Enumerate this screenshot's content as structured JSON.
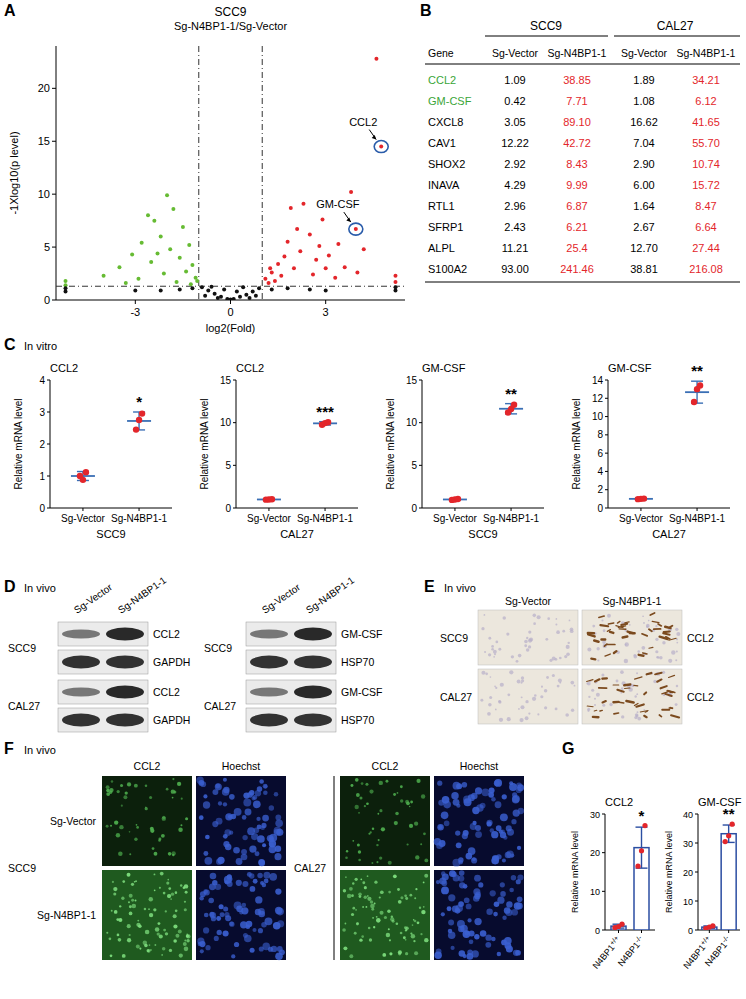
{
  "panels": [
    "A",
    "B",
    "C",
    "D",
    "E",
    "F",
    "G"
  ],
  "chart_data": [
    {
      "type": "scatter",
      "title": "SCC9",
      "subtitle": "Sg-N4BP1-1/Sg-Vector",
      "x_label": "log2(Fold)",
      "y_label": "-1Xlog10(p level)",
      "xlim": [
        -5.5,
        5.5
      ],
      "xticks": [
        -3,
        0,
        3
      ],
      "ylim": [
        0,
        24
      ],
      "yticks": [
        0,
        5,
        10,
        15,
        20
      ],
      "thresholds": {
        "x": [
          -1,
          1
        ],
        "y": [
          1.3
        ]
      },
      "series": [
        {
          "color": "#e3262b",
          "x": [
            4.75,
            3.95,
            4.6,
            2.9,
            2.5,
            3.4,
            3.8,
            1.8,
            2.2,
            1.5,
            1.3,
            1.1,
            1.6,
            2.0,
            2.7,
            3.1,
            3.6,
            4.2,
            1.9,
            2.3,
            1.2,
            1.4,
            2.6,
            3.3,
            4.0,
            5.2,
            5.2,
            1.7,
            2.1,
            2.8,
            1.25,
            3.0
          ],
          "values": [
            14.5,
            6.7,
            22.8,
            7.6,
            6.2,
            5.3,
            10.2,
            5.5,
            4.6,
            3.4,
            2.6,
            2.0,
            2.3,
            3.0,
            3.8,
            4.2,
            3.1,
            4.8,
            8.7,
            9.1,
            1.6,
            1.8,
            2.4,
            2.1,
            2.6,
            1.7,
            2.3,
            4.1,
            6.7,
            5.1,
            3.0,
            3.0
          ]
        },
        {
          "color": "#66bb33",
          "x": [
            -2.0,
            -1.8,
            -2.4,
            -1.5,
            -2.2,
            -1.3,
            -2.8,
            -1.9,
            -3.1,
            -1.6,
            -2.5,
            -1.2,
            -3.5,
            -1.4,
            -2.1,
            -1.1,
            -4.0,
            -2.9,
            -1.7,
            -3.3,
            -5.2,
            -5.2,
            -1.25,
            -2.3,
            -2.6,
            -1.05
          ],
          "values": [
            9.9,
            8.6,
            7.5,
            6.9,
            6.0,
            5.2,
            5.4,
            4.8,
            4.3,
            4.0,
            3.6,
            3.3,
            3.1,
            2.7,
            2.5,
            2.1,
            2.3,
            2.0,
            1.7,
            1.6,
            1.8,
            1.4,
            1.5,
            4.4,
            8.0,
            1.8
          ]
        },
        {
          "color": "#111111",
          "x": [
            -0.9,
            -0.7,
            -0.5,
            -0.3,
            -0.1,
            0,
            0.1,
            0.3,
            0.5,
            0.7,
            0.9,
            -1.2,
            -1.6,
            -2.2,
            1.3,
            1.8,
            2.5,
            0.2,
            -0.2,
            0.4,
            -0.6,
            -5.2,
            -5.2,
            5.2,
            5.2,
            -0.8,
            0.8,
            -3.0,
            3.0,
            0.6,
            -0.4
          ],
          "values": [
            1.2,
            0.9,
            0.6,
            0.3,
            0.1,
            0.05,
            0.1,
            0.3,
            0.5,
            0.8,
            1.1,
            1.1,
            1.0,
            0.9,
            1.0,
            1.1,
            1.0,
            0.8,
            1.0,
            1.2,
            1.25,
            0.8,
            1.1,
            0.9,
            1.2,
            0.4,
            0.4,
            0.9,
            0.9,
            0.2,
            0.2
          ]
        }
      ],
      "annotations": [
        {
          "text": "CCL2",
          "x": 4.75,
          "y": 14.5
        },
        {
          "text": "GM-CSF",
          "x": 3.95,
          "y": 6.7
        }
      ]
    },
    {
      "type": "dot",
      "title": "CCL2",
      "annotation": "In vitro",
      "group": "SCC9",
      "y_label": "Relative mRNA level",
      "categories": [
        "Sg-Vector",
        "Sg-N4BP1-1"
      ],
      "points": [
        [
          1.0,
          0.88,
          1.12
        ],
        [
          2.45,
          2.75,
          2.95
        ]
      ],
      "values": [
        1.0,
        2.72
      ],
      "errors": [
        0.14,
        0.28
      ],
      "significance": "*",
      "ylim": [
        0,
        4
      ],
      "yticks": [
        0,
        1,
        2,
        3,
        4
      ],
      "color": "#e3262b"
    },
    {
      "type": "dot",
      "title": "CCL2",
      "group": "CAL27",
      "y_label": "Relative mRNA level",
      "categories": [
        "Sg-Vector",
        "Sg-N4BP1-1"
      ],
      "points": [
        [
          0.98,
          1.0,
          1.03
        ],
        [
          9.75,
          9.95,
          10.05
        ]
      ],
      "values": [
        1.0,
        9.92
      ],
      "errors": [
        0.05,
        0.2
      ],
      "significance": "***",
      "ylim": [
        0,
        15
      ],
      "yticks": [
        0,
        5,
        10,
        15
      ],
      "color": "#e3262b"
    },
    {
      "type": "dot",
      "title": "GM-CSF",
      "group": "SCC9",
      "y_label": "Relative mRNA level",
      "categories": [
        "Sg-Vector",
        "Sg-N4BP1-1"
      ],
      "points": [
        [
          0.95,
          1.0,
          1.05
        ],
        [
          11.2,
          11.6,
          12.1
        ]
      ],
      "values": [
        1.0,
        11.63
      ],
      "errors": [
        0.1,
        0.6
      ],
      "significance": "**",
      "ylim": [
        0,
        15
      ],
      "yticks": [
        0,
        5,
        10,
        15
      ],
      "color": "#e3262b"
    },
    {
      "type": "dot",
      "title": "GM-CSF",
      "group": "CAL27",
      "y_label": "Relative mRNA level",
      "categories": [
        "Sg-Vector",
        "Sg-N4BP1-1"
      ],
      "points": [
        [
          0.97,
          1.0,
          1.03
        ],
        [
          11.6,
          13.0,
          13.4
        ]
      ],
      "values": [
        1.0,
        12.67
      ],
      "errors": [
        0.1,
        1.2
      ],
      "significance": "**",
      "ylim": [
        0,
        14
      ],
      "yticks": [
        0,
        2,
        4,
        6,
        8,
        10,
        12,
        14
      ],
      "color": "#e3262b"
    },
    {
      "type": "bar",
      "title": "CCL2",
      "y_label": "Relative mRNA level",
      "categories": [
        "N4BP1+/+",
        "N4BP1-/-"
      ],
      "points": [
        [
          0.6,
          0.9,
          1.5
        ],
        [
          16.5,
          20.5,
          27.0
        ]
      ],
      "values": [
        1.0,
        21.3
      ],
      "errors": [
        0.5,
        5.3
      ],
      "significance": "*",
      "ylim": [
        0,
        30
      ],
      "yticks": [
        0,
        10,
        20,
        30
      ],
      "color": "#2b4ea2"
    },
    {
      "type": "bar",
      "title": "GM-CSF",
      "y_label": "Relative mRNA level",
      "categories": [
        "N4BP1+/+",
        "N4BP1-/-"
      ],
      "points": [
        [
          0.6,
          1.0,
          1.4
        ],
        [
          30.5,
          32.5,
          36.5
        ]
      ],
      "values": [
        1.0,
        33.2
      ],
      "errors": [
        0.4,
        3.0
      ],
      "significance": "**",
      "ylim": [
        0,
        40
      ],
      "yticks": [
        0,
        10,
        20,
        30,
        40
      ],
      "color": "#2b4ea2"
    }
  ],
  "table": {
    "groups": [
      "SCC9",
      "CAL27"
    ],
    "columns": [
      "Gene",
      "Sg-Vector",
      "Sg-N4BP1-1",
      "Sg-Vector",
      "Sg-N4BP1-1"
    ],
    "column_colors": [
      "#000000",
      "#000000",
      "#e3262b",
      "#000000",
      "#e3262b"
    ],
    "gene_colors": [
      "#3aa537",
      "#3aa537",
      "#000000",
      "#000000",
      "#000000",
      "#000000",
      "#000000",
      "#000000",
      "#000000",
      "#000000"
    ],
    "rows": [
      [
        "CCL2",
        "1.09",
        "38.85",
        "1.89",
        "34.21"
      ],
      [
        "GM-CSF",
        "0.42",
        "7.71",
        "1.08",
        "6.12"
      ],
      [
        "CXCL8",
        "3.05",
        "89.10",
        "16.62",
        "41.65"
      ],
      [
        "CAV1",
        "12.22",
        "42.72",
        "7.04",
        "55.70"
      ],
      [
        "SHOX2",
        "2.92",
        "8.43",
        "2.90",
        "10.74"
      ],
      [
        "INAVA",
        "4.29",
        "9.99",
        "6.00",
        "15.72"
      ],
      [
        "RTL1",
        "2.96",
        "6.87",
        "1.64",
        "8.47"
      ],
      [
        "SFRP1",
        "2.43",
        "6.21",
        "2.67",
        "6.64"
      ],
      [
        "ALPL",
        "11.21",
        "25.4",
        "12.70",
        "27.44"
      ],
      [
        "S100A2",
        "93.00",
        "241.46",
        "38.81",
        "216.08"
      ]
    ]
  },
  "blots": {
    "label": "In vivo",
    "lanes": [
      "Sg-Vector",
      "Sg-N4BP1-1"
    ],
    "groups": [
      {
        "cells": [
          {
            "cell": "SCC9",
            "proteins": [
              "CCL2",
              "GAPDH"
            ]
          },
          {
            "cell": "CAL27",
            "proteins": [
              "CCL2",
              "GAPDH"
            ]
          }
        ]
      },
      {
        "cells": [
          {
            "cell": "SCC9",
            "proteins": [
              "GM-CSF",
              "HSP70"
            ]
          },
          {
            "cell": "CAL27",
            "proteins": [
              "GM-CSF",
              "HSP70"
            ]
          }
        ]
      }
    ]
  },
  "ihc": {
    "label": "In vivo",
    "columns": [
      "Sg-Vector",
      "Sg-N4BP1-1"
    ],
    "rows": [
      "SCC9",
      "CAL27"
    ],
    "stain": "CCL2"
  },
  "immunofluorescence": {
    "label": "In vivo",
    "channels": [
      "CCL2",
      "Hoechst"
    ],
    "rows": [
      "Sg-Vector",
      "Sg-N4BP1-1"
    ],
    "cells": [
      "SCC9",
      "CAL27"
    ]
  }
}
